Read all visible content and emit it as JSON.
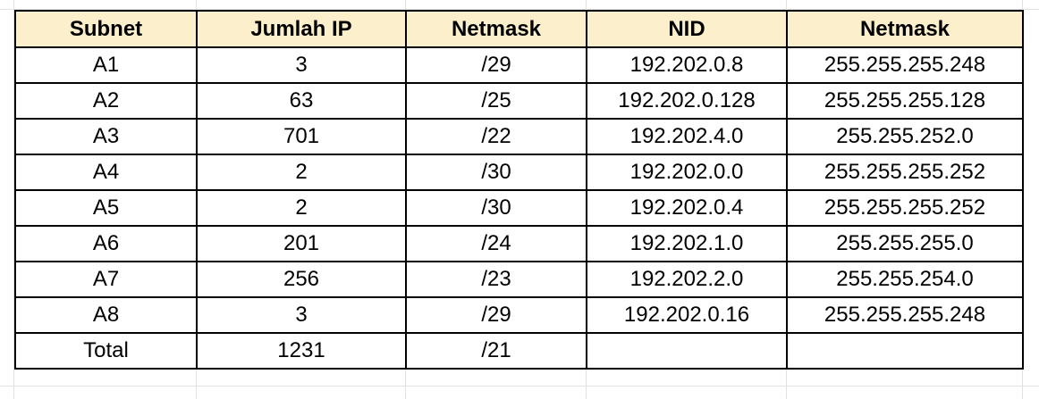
{
  "table": {
    "headers": [
      "Subnet",
      "Jumlah IP",
      "Netmask",
      "NID",
      "Netmask"
    ],
    "rows": [
      [
        "A1",
        "3",
        "/29",
        "192.202.0.8",
        "255.255.255.248"
      ],
      [
        "A2",
        "63",
        "/25",
        "192.202.0.128",
        "255.255.255.128"
      ],
      [
        "A3",
        "701",
        "/22",
        "192.202.4.0",
        "255.255.252.0"
      ],
      [
        "A4",
        "2",
        "/30",
        "192.202.0.0",
        "255.255.255.252"
      ],
      [
        "A5",
        "2",
        "/30",
        "192.202.0.4",
        "255.255.255.252"
      ],
      [
        "A6",
        "201",
        "/24",
        "192.202.1.0",
        "255.255.255.0"
      ],
      [
        "A7",
        "256",
        "/23",
        "192.202.2.0",
        "255.255.254.0"
      ],
      [
        "A8",
        "3",
        "/29",
        "192.202.0.16",
        "255.255.255.248"
      ],
      [
        "Total",
        "1231",
        "/21",
        "",
        ""
      ]
    ]
  },
  "colors": {
    "header_background": "#fcefcb",
    "border": "#000000",
    "gridline": "#e2e2e2"
  }
}
